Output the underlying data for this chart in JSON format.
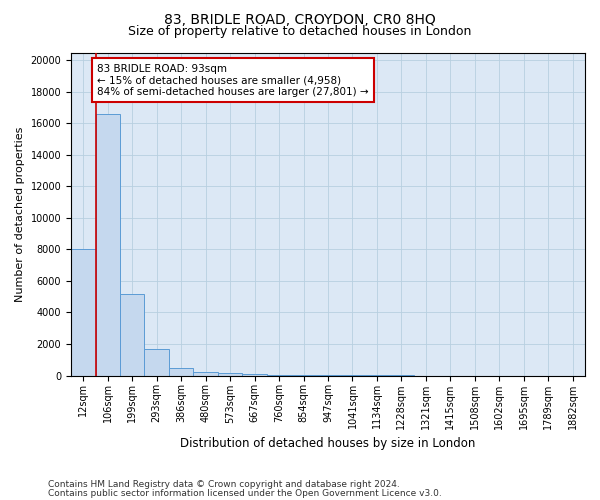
{
  "title_line1": "83, BRIDLE ROAD, CROYDON, CR0 8HQ",
  "title_line2": "Size of property relative to detached houses in London",
  "xlabel": "Distribution of detached houses by size in London",
  "ylabel": "Number of detached properties",
  "bin_labels": [
    "12sqm",
    "106sqm",
    "199sqm",
    "293sqm",
    "386sqm",
    "480sqm",
    "573sqm",
    "667sqm",
    "760sqm",
    "854sqm",
    "947sqm",
    "1041sqm",
    "1134sqm",
    "1228sqm",
    "1321sqm",
    "1415sqm",
    "1508sqm",
    "1602sqm",
    "1695sqm",
    "1789sqm",
    "1882sqm"
  ],
  "bar_values": [
    8050,
    16600,
    5200,
    1700,
    500,
    250,
    150,
    100,
    50,
    30,
    15,
    8,
    4,
    2,
    1,
    1,
    0,
    0,
    0,
    0,
    0
  ],
  "bar_color": "#c5d8ee",
  "bar_edge_color": "#5b9bd5",
  "bg_color": "#dce8f5",
  "grid_color": "#b8cfe0",
  "annotation_box_color": "#ffffff",
  "annotation_box_edge_color": "#cc0000",
  "property_line_color": "#cc0000",
  "annotation_line1": "83 BRIDLE ROAD: 93sqm",
  "annotation_line2": "← 15% of detached houses are smaller (4,958)",
  "annotation_line3": "84% of semi-detached houses are larger (27,801) →",
  "ylim": [
    0,
    20500
  ],
  "yticks": [
    0,
    2000,
    4000,
    6000,
    8000,
    10000,
    12000,
    14000,
    16000,
    18000,
    20000
  ],
  "footer_line1": "Contains HM Land Registry data © Crown copyright and database right 2024.",
  "footer_line2": "Contains public sector information licensed under the Open Government Licence v3.0.",
  "title1_fontsize": 10,
  "title2_fontsize": 9,
  "annot_fontsize": 7.5,
  "tick_fontsize": 7,
  "ylabel_fontsize": 8,
  "xlabel_fontsize": 8.5,
  "footer_fontsize": 6.5
}
